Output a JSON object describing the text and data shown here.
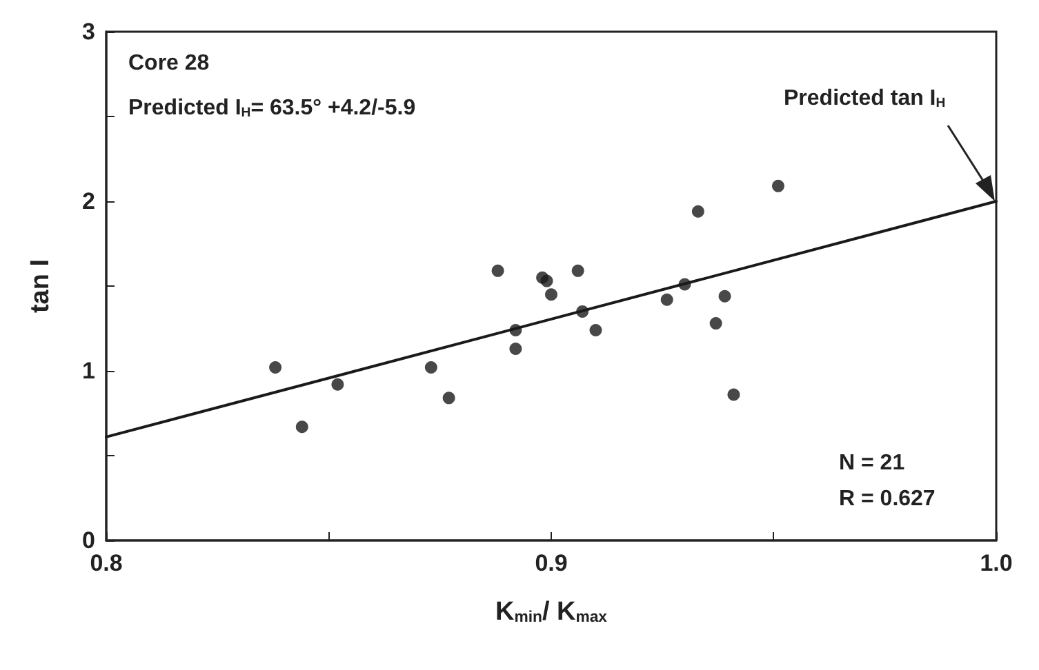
{
  "chart_data": {
    "type": "scatter",
    "xlabel": "K$_{min}$/ K$_{max}$",
    "ylabel": "tan I",
    "xlim": [
      0.8,
      1.0
    ],
    "ylim": [
      0,
      3
    ],
    "xticks": [
      0.8,
      {
        "value": 0.85,
        "label": null
      },
      0.9,
      {
        "value": 0.95,
        "label": null
      },
      {
        "value": 1.0,
        "label": "1.0"
      }
    ],
    "yticks": [
      0,
      {
        "value": 0.5,
        "label": null
      },
      1,
      {
        "value": 1.5,
        "label": null
      },
      2,
      {
        "value": 2.5,
        "label": null
      },
      3
    ],
    "marker": "circle",
    "series": [
      {
        "type": "scatter",
        "color": "#1a1a1a",
        "x": [
          0.838,
          0.844,
          0.852,
          0.873,
          0.877,
          0.888,
          0.892,
          0.892,
          0.898,
          0.899,
          0.9,
          0.906,
          0.907,
          0.91,
          0.926,
          0.93,
          0.933,
          0.937,
          0.939,
          0.941,
          0.951
        ],
        "values": [
          1.02,
          0.67,
          0.92,
          1.02,
          0.84,
          1.59,
          1.24,
          1.13,
          1.55,
          1.53,
          1.45,
          1.59,
          1.35,
          1.24,
          1.42,
          1.51,
          1.94,
          1.28,
          1.44,
          0.86,
          2.09
        ]
      },
      {
        "type": "line",
        "color": "#1a1a1a",
        "marker": "none",
        "x": [
          0.8,
          1.0
        ],
        "values": [
          0.61,
          2.0
        ]
      }
    ],
    "annotations": [
      "Core 28",
      "Predicted I$_{H}$= 63.5° +4.2/-5.9",
      "Predicted tan I$_{H}$",
      "N = 21",
      "R = 0.627"
    ]
  }
}
